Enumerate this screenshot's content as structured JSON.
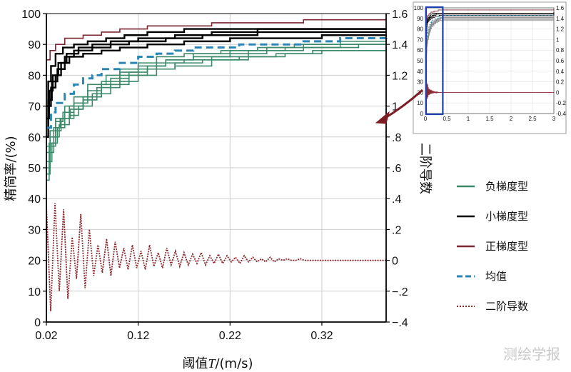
{
  "chart_data": {
    "type": "line",
    "xlabel_prefix": "阈值",
    "xlabel_var": "T",
    "xlabel_suffix": "/(m/s)",
    "ylabel_left": "精简率/(%)",
    "ylabel_right": "二阶导数",
    "xlim": [
      0.02,
      0.39
    ],
    "ylim_left": [
      0,
      100
    ],
    "ylim_right": [
      -0.4,
      1.6
    ],
    "xticks": [
      0.02,
      0.12,
      0.22,
      0.32
    ],
    "yticks_left": [
      0,
      10,
      20,
      30,
      40,
      50,
      60,
      70,
      80,
      90,
      100
    ],
    "yticks_right": [
      -0.4,
      -0.2,
      0,
      0.2,
      0.4,
      0.6,
      0.8,
      1,
      1.2,
      1.4,
      1.6
    ],
    "grid": true,
    "legend": {
      "position": "right",
      "items": [
        {
          "label": "负梯度型",
          "color": "#3c8a6a",
          "style": "solid"
        },
        {
          "label": "小梯度型",
          "color": "#000000",
          "style": "solid"
        },
        {
          "label": "正梯度型",
          "color": "#7a2530",
          "style": "solid"
        },
        {
          "label": "均值",
          "color": "#2b85b5",
          "style": "dashed"
        },
        {
          "label": "二阶导数",
          "color": "#8b2a30",
          "style": "dotted"
        }
      ]
    },
    "series": [
      {
        "group": "negative",
        "color": "#3c8a6a",
        "points": [
          [
            0.02,
            46
          ],
          [
            0.023,
            52
          ],
          [
            0.026,
            58
          ],
          [
            0.032,
            63
          ],
          [
            0.04,
            66
          ],
          [
            0.05,
            69
          ],
          [
            0.06,
            73
          ],
          [
            0.08,
            76
          ],
          [
            0.1,
            78
          ],
          [
            0.12,
            80
          ],
          [
            0.14,
            82
          ],
          [
            0.16,
            83
          ],
          [
            0.2,
            85
          ],
          [
            0.24,
            86
          ],
          [
            0.28,
            87
          ],
          [
            0.32,
            88
          ],
          [
            0.36,
            88
          ],
          [
            0.39,
            89
          ]
        ]
      },
      {
        "group": "negative",
        "color": "#3c8a6a",
        "points": [
          [
            0.02,
            48
          ],
          [
            0.024,
            55
          ],
          [
            0.028,
            60
          ],
          [
            0.034,
            64
          ],
          [
            0.045,
            67
          ],
          [
            0.055,
            70
          ],
          [
            0.07,
            74
          ],
          [
            0.09,
            77
          ],
          [
            0.11,
            80
          ],
          [
            0.13,
            82
          ],
          [
            0.16,
            84
          ],
          [
            0.19,
            85
          ],
          [
            0.23,
            86
          ],
          [
            0.27,
            87
          ],
          [
            0.31,
            88
          ],
          [
            0.35,
            88
          ],
          [
            0.39,
            88
          ]
        ]
      },
      {
        "group": "negative",
        "color": "#3c8a6a",
        "points": [
          [
            0.02,
            50
          ],
          [
            0.024,
            57
          ],
          [
            0.03,
            62
          ],
          [
            0.036,
            66
          ],
          [
            0.046,
            69
          ],
          [
            0.06,
            72
          ],
          [
            0.075,
            76
          ],
          [
            0.09,
            79
          ],
          [
            0.11,
            81
          ],
          [
            0.13,
            83
          ],
          [
            0.15,
            85
          ],
          [
            0.18,
            86
          ],
          [
            0.22,
            87
          ],
          [
            0.26,
            88
          ],
          [
            0.3,
            89
          ],
          [
            0.34,
            90
          ],
          [
            0.39,
            91
          ]
        ]
      },
      {
        "group": "negative",
        "color": "#3c8a6a",
        "points": [
          [
            0.02,
            52
          ],
          [
            0.023,
            58
          ],
          [
            0.028,
            63
          ],
          [
            0.035,
            66
          ],
          [
            0.045,
            70
          ],
          [
            0.06,
            73
          ],
          [
            0.08,
            77
          ],
          [
            0.1,
            80
          ],
          [
            0.12,
            82
          ],
          [
            0.14,
            84
          ],
          [
            0.17,
            85
          ],
          [
            0.2,
            86
          ],
          [
            0.24,
            88
          ],
          [
            0.28,
            89
          ],
          [
            0.32,
            89
          ],
          [
            0.36,
            90
          ],
          [
            0.39,
            90
          ]
        ]
      },
      {
        "group": "negative",
        "color": "#3c8a6a",
        "points": [
          [
            0.02,
            55
          ],
          [
            0.024,
            60
          ],
          [
            0.03,
            65
          ],
          [
            0.038,
            68
          ],
          [
            0.05,
            71
          ],
          [
            0.065,
            75
          ],
          [
            0.08,
            78
          ],
          [
            0.1,
            81
          ],
          [
            0.12,
            83
          ],
          [
            0.15,
            85
          ],
          [
            0.18,
            87
          ],
          [
            0.22,
            88
          ],
          [
            0.26,
            89
          ],
          [
            0.3,
            90
          ],
          [
            0.34,
            90
          ],
          [
            0.39,
            91
          ]
        ]
      },
      {
        "group": "negative",
        "color": "#3c8a6a",
        "points": [
          [
            0.02,
            57
          ],
          [
            0.024,
            62
          ],
          [
            0.03,
            66
          ],
          [
            0.04,
            70
          ],
          [
            0.05,
            73
          ],
          [
            0.065,
            77
          ],
          [
            0.085,
            80
          ],
          [
            0.1,
            82
          ],
          [
            0.12,
            84
          ],
          [
            0.14,
            86
          ],
          [
            0.17,
            87
          ],
          [
            0.21,
            88
          ],
          [
            0.25,
            89
          ],
          [
            0.29,
            90
          ],
          [
            0.34,
            91
          ],
          [
            0.39,
            92
          ]
        ]
      },
      {
        "group": "small",
        "color": "#000000",
        "points": [
          [
            0.02,
            60
          ],
          [
            0.022,
            70
          ],
          [
            0.025,
            76
          ],
          [
            0.03,
            80
          ],
          [
            0.036,
            84
          ],
          [
            0.045,
            86
          ],
          [
            0.06,
            87
          ],
          [
            0.08,
            88
          ],
          [
            0.1,
            89
          ],
          [
            0.13,
            90
          ],
          [
            0.17,
            91
          ],
          [
            0.22,
            92
          ],
          [
            0.27,
            92
          ],
          [
            0.32,
            93
          ],
          [
            0.39,
            93
          ]
        ]
      },
      {
        "group": "small",
        "color": "#000000",
        "points": [
          [
            0.02,
            63
          ],
          [
            0.022,
            72
          ],
          [
            0.026,
            78
          ],
          [
            0.032,
            82
          ],
          [
            0.04,
            86
          ],
          [
            0.05,
            88
          ],
          [
            0.07,
            89
          ],
          [
            0.09,
            90
          ],
          [
            0.11,
            91
          ],
          [
            0.15,
            92
          ],
          [
            0.19,
            93
          ],
          [
            0.25,
            94
          ],
          [
            0.32,
            94
          ],
          [
            0.39,
            94
          ]
        ]
      },
      {
        "group": "small",
        "color": "#000000",
        "points": [
          [
            0.02,
            66
          ],
          [
            0.023,
            75
          ],
          [
            0.027,
            80
          ],
          [
            0.033,
            84
          ],
          [
            0.042,
            87
          ],
          [
            0.055,
            89
          ],
          [
            0.07,
            90
          ],
          [
            0.09,
            91
          ],
          [
            0.12,
            92
          ],
          [
            0.16,
            93
          ],
          [
            0.2,
            94
          ],
          [
            0.25,
            95
          ],
          [
            0.31,
            95
          ],
          [
            0.39,
            95
          ]
        ]
      },
      {
        "group": "small",
        "color": "#000000",
        "points": [
          [
            0.02,
            70
          ],
          [
            0.022,
            78
          ],
          [
            0.025,
            83
          ],
          [
            0.03,
            87
          ],
          [
            0.038,
            89
          ],
          [
            0.05,
            90
          ],
          [
            0.065,
            91
          ],
          [
            0.085,
            92
          ],
          [
            0.105,
            93
          ],
          [
            0.13,
            94
          ],
          [
            0.17,
            95
          ],
          [
            0.24,
            95
          ],
          [
            0.31,
            95
          ],
          [
            0.39,
            95
          ]
        ]
      },
      {
        "group": "positive",
        "color": "#7a2530",
        "points": [
          [
            0.02,
            85
          ],
          [
            0.024,
            88
          ],
          [
            0.03,
            90
          ],
          [
            0.04,
            92
          ],
          [
            0.06,
            93
          ],
          [
            0.08,
            94
          ],
          [
            0.1,
            95
          ],
          [
            0.13,
            96
          ],
          [
            0.16,
            96
          ],
          [
            0.2,
            97
          ],
          [
            0.25,
            97
          ],
          [
            0.3,
            98
          ],
          [
            0.35,
            98
          ],
          [
            0.39,
            98
          ]
        ]
      },
      {
        "group": "mean",
        "color": "#2b85b5",
        "dashed": true,
        "points": [
          [
            0.02,
            63
          ],
          [
            0.025,
            68
          ],
          [
            0.03,
            71
          ],
          [
            0.04,
            74
          ],
          [
            0.05,
            77
          ],
          [
            0.06,
            79
          ],
          [
            0.07,
            80
          ],
          [
            0.08,
            82
          ],
          [
            0.1,
            84
          ],
          [
            0.12,
            86
          ],
          [
            0.14,
            87
          ],
          [
            0.16,
            88
          ],
          [
            0.18,
            89
          ],
          [
            0.2,
            89
          ],
          [
            0.23,
            90
          ],
          [
            0.26,
            90
          ],
          [
            0.3,
            91
          ],
          [
            0.34,
            92
          ],
          [
            0.39,
            93
          ]
        ]
      }
    ],
    "second_derivative": {
      "color": "#8b2a30",
      "axis": "right",
      "x_start": 0.02,
      "x_end": 0.39,
      "y": [
        0.35,
        -0.33,
        0.37,
        -0.2,
        0.33,
        -0.25,
        0.15,
        -0.12,
        0.3,
        -0.18,
        0.2,
        -0.1,
        0.1,
        -0.08,
        0.14,
        -0.1,
        0.12,
        -0.05,
        0.08,
        -0.06,
        0.1,
        -0.05,
        0.06,
        -0.06,
        0.1,
        -0.04,
        0.05,
        -0.05,
        0.08,
        -0.03,
        0.06,
        -0.04,
        0.05,
        -0.03,
        0.04,
        -0.02,
        0.05,
        -0.03,
        0.03,
        -0.02,
        0.04,
        -0.02,
        0.03,
        -0.01,
        0.02,
        -0.02,
        0.03,
        -0.01,
        0.02,
        -0.01,
        0.01,
        -0.01,
        0.02,
        -0.01,
        0.01,
        0,
        0.01,
        0,
        0,
        0.01,
        0,
        0,
        0,
        0,
        0,
        0,
        0,
        0,
        0,
        0,
        0,
        0,
        0,
        0,
        0,
        0,
        0,
        0,
        0,
        0
      ]
    },
    "inset": {
      "xlim": [
        0,
        3
      ],
      "ylim_left": [
        0,
        100
      ],
      "ylim_right": [
        -0.4,
        1.6
      ],
      "xticks": [
        "0",
        "0.5",
        "1",
        "1.5",
        "2",
        "2.5",
        "3"
      ],
      "yticks_left": [
        "0",
        "10",
        "20",
        "30",
        "40",
        "50",
        "60",
        "70",
        "80",
        "90",
        "100"
      ],
      "yticks_right": [
        "-0.4",
        "-0.2",
        "0",
        "0.2",
        "0.4",
        "0.6",
        "0.8",
        "1",
        "1.2",
        "1.4",
        "1.6"
      ],
      "highlight_x": [
        0,
        0.39
      ],
      "highlight_color": "#1f3fb0"
    },
    "arrow_color": "#7a1e24"
  },
  "watermark": "测绘学报"
}
